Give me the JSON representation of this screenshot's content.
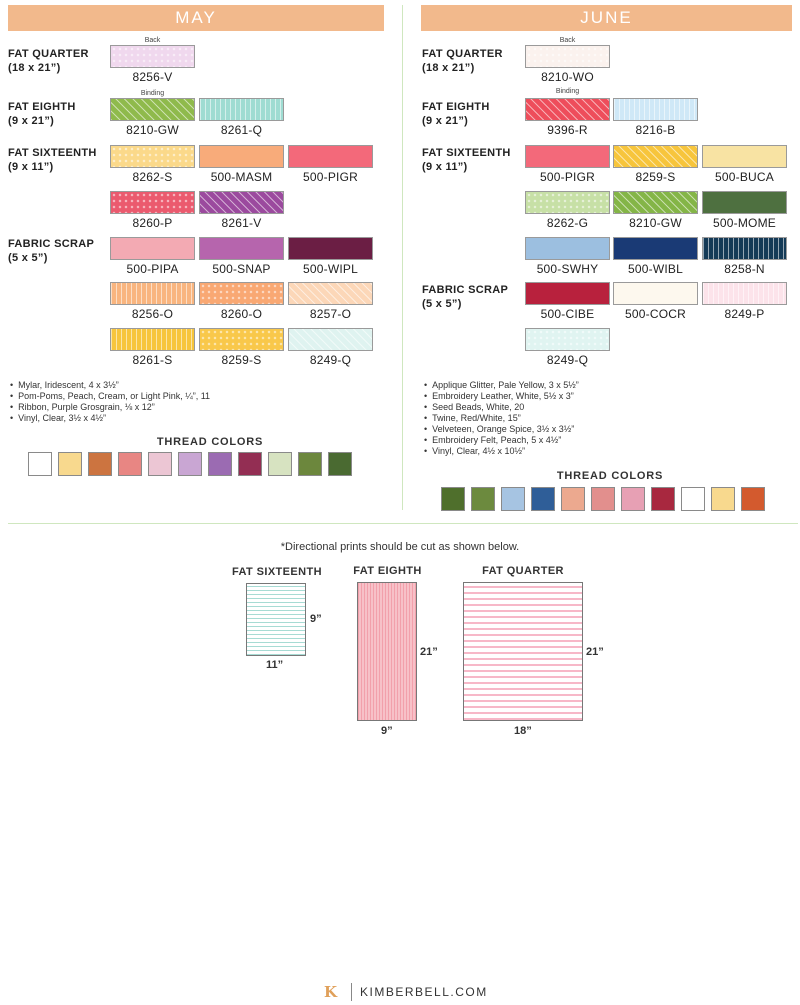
{
  "may": {
    "header": "MAY",
    "categories": {
      "fat_quarter": {
        "name": "FAT QUARTER",
        "dim": "(18 x 21”)"
      },
      "fat_eighth": {
        "name": "FAT EIGHTH",
        "dim": "(9 x 21”)"
      },
      "fat_sixteenth": {
        "name": "FAT SIXTEENTH",
        "dim": "(9 x 11”)"
      },
      "fabric_scrap": {
        "name": "FABRIC SCRAP",
        "dim": "(5 x 5”)"
      }
    },
    "tags": {
      "back": "Back",
      "binding": "Binding"
    },
    "swatches": [
      {
        "code": "8256-V",
        "color": "#f0d8ee"
      },
      {
        "code": "8210-GW",
        "color": "#8fba4c"
      },
      {
        "code": "8261-Q",
        "color": "#9fdcd2"
      },
      {
        "code": "8262-S",
        "color": "#fbd98a"
      },
      {
        "code": "500-MASM",
        "color": "#f8ab7a"
      },
      {
        "code": "500-PIGR",
        "color": "#f3697a"
      },
      {
        "code": "8260-P",
        "color": "#eb5a6e"
      },
      {
        "code": "8261-V",
        "color": "#9b4a9e"
      },
      {
        "code": "500-PIPA",
        "color": "#f3aab3"
      },
      {
        "code": "500-SNAP",
        "color": "#b665ad"
      },
      {
        "code": "500-WIPL",
        "color": "#6b1e44"
      },
      {
        "code": "8256-O",
        "color": "#f9b57f"
      },
      {
        "code": "8260-O",
        "color": "#f9a873"
      },
      {
        "code": "8257-O",
        "color": "#fcd7b8"
      },
      {
        "code": "8261-S",
        "color": "#f7c53c"
      },
      {
        "code": "8259-S",
        "color": "#f9c84a"
      },
      {
        "code": "8249-Q",
        "color": "#dff3f0"
      }
    ],
    "notes": [
      "Mylar, Iridescent, 4 x 3½”",
      "Pom-Poms, Peach, Cream, or Light Pink, ¼”, 11",
      "Ribbon, Purple Grosgrain, ⅛ x 12”",
      "Vinyl, Clear, 3½ x 4½”"
    ],
    "thread_title": "THREAD COLORS",
    "threads": [
      "#ffffff",
      "#f8d98e",
      "#cc7440",
      "#e88683",
      "#ecc6d4",
      "#c9a6d3",
      "#9b6bb2",
      "#932e53",
      "#d7e3c1",
      "#6c873d",
      "#4a6a31"
    ]
  },
  "june": {
    "header": "JUNE",
    "categories": {
      "fat_quarter": {
        "name": "FAT QUARTER",
        "dim": "(18 x 21”)"
      },
      "fat_eighth": {
        "name": "FAT EIGHTH",
        "dim": "(9 x 21”)"
      },
      "fat_sixteenth": {
        "name": "FAT SIXTEENTH",
        "dim": "(9 x 11”)"
      },
      "fabric_scrap": {
        "name": "FABRIC SCRAP",
        "dim": "(5 x 5”)"
      }
    },
    "tags": {
      "back": "Back",
      "binding": "Binding"
    },
    "swatches": [
      {
        "code": "8210-WO",
        "color": "#fbf2ee"
      },
      {
        "code": "9396-R",
        "color": "#ee4d5b"
      },
      {
        "code": "8216-B",
        "color": "#cfe8f7"
      },
      {
        "code": "500-PIGR",
        "color": "#f3697a"
      },
      {
        "code": "8259-S",
        "color": "#f7c53c"
      },
      {
        "code": "500-BUCA",
        "color": "#f8e3a3"
      },
      {
        "code": "8262-G",
        "color": "#c7e0a6"
      },
      {
        "code": "8210-GW",
        "color": "#84b547"
      },
      {
        "code": "500-MOME",
        "color": "#4e7040"
      },
      {
        "code": "500-SWHY",
        "color": "#9cbfe0"
      },
      {
        "code": "500-WIBL",
        "color": "#1a3a75"
      },
      {
        "code": "8258-N",
        "color": "#143a56"
      },
      {
        "code": "500-CIBE",
        "color": "#b8213d"
      },
      {
        "code": "500-COCR",
        "color": "#fdf8ee"
      },
      {
        "code": "8249-P",
        "color": "#fce3ea"
      },
      {
        "code": "8249-Q",
        "color": "#e0f4f1"
      }
    ],
    "notes": [
      "Applique Glitter, Pale Yellow, 3 x 5½”",
      "Embroidery Leather, White, 5½ x 3”",
      "Seed Beads, White, 20",
      "Twine, Red/White, 15”",
      "Velveteen, Orange Spice, 3½ x 3½”",
      "Embroidery Felt, Peach, 5 x 4½”",
      "Vinyl, Clear, 4½ x 10½”"
    ],
    "thread_title": "THREAD COLORS",
    "threads": [
      "#4f6f2c",
      "#6c8a3e",
      "#a6c4e2",
      "#2f5e98",
      "#eca98f",
      "#e28f8d",
      "#e7a0b4",
      "#a8283f",
      "#ffffff",
      "#f8d98e",
      "#d35a2e"
    ]
  },
  "directional": {
    "note": "*Directional prints should be cut as shown below.",
    "fat_sixteenth": {
      "label": "FAT SIXTEENTH",
      "height": "9”",
      "width": "11”",
      "color": "#a7dbd4"
    },
    "fat_eighth": {
      "label": "FAT EIGHTH",
      "height": "21”",
      "width": "9”",
      "color": "#f2a0ab"
    },
    "fat_quarter": {
      "label": "FAT QUARTER",
      "height": "21”",
      "width": "18”",
      "color": "#f7b8c8"
    }
  },
  "footer": {
    "logo": "K",
    "text": "KIMBERBELL.COM"
  }
}
